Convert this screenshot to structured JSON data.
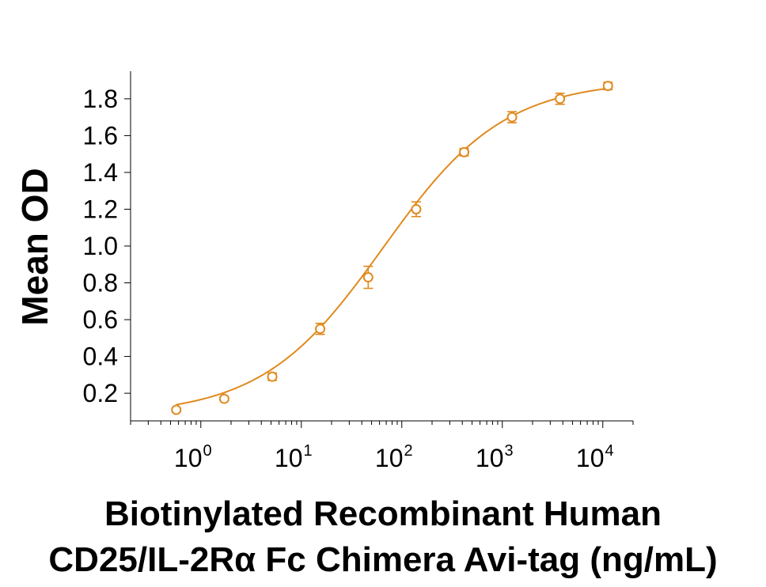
{
  "chart_data": {
    "type": "scatter",
    "title": "",
    "xlabel_lines": [
      "Biotinylated Recombinant Human",
      "CD25/IL-2Rα Fc Chimera Avi-tag (ng/mL)"
    ],
    "ylabel": "Mean OD",
    "x_scale": "log",
    "xlim": [
      0.2,
      20000
    ],
    "ylim": [
      0.05,
      1.95
    ],
    "x_ticks": [
      {
        "base": "10",
        "exp": "0",
        "value": 1
      },
      {
        "base": "10",
        "exp": "1",
        "value": 10
      },
      {
        "base": "10",
        "exp": "2",
        "value": 100
      },
      {
        "base": "10",
        "exp": "3",
        "value": 1000
      },
      {
        "base": "10",
        "exp": "4",
        "value": 10000
      }
    ],
    "y_ticks": [
      "0.2",
      "0.4",
      "0.6",
      "0.8",
      "1.0",
      "1.2",
      "1.4",
      "1.6",
      "1.8"
    ],
    "grid": false,
    "color": "#E08A1E",
    "series": [
      {
        "x": [
          0.57,
          1.71,
          5.14,
          15.4,
          46.3,
          139,
          417,
          1250,
          3750,
          11250
        ],
        "y": [
          0.11,
          0.17,
          0.29,
          0.55,
          0.83,
          1.2,
          1.51,
          1.7,
          1.8,
          1.87
        ],
        "error": [
          0.01,
          0.01,
          0.02,
          0.03,
          0.06,
          0.04,
          0.02,
          0.03,
          0.03,
          0.02
        ]
      }
    ],
    "fit_curve": {
      "model": "4PL",
      "bottom": 0.08,
      "top": 1.9,
      "ec50": 65,
      "hill": 0.72
    }
  }
}
